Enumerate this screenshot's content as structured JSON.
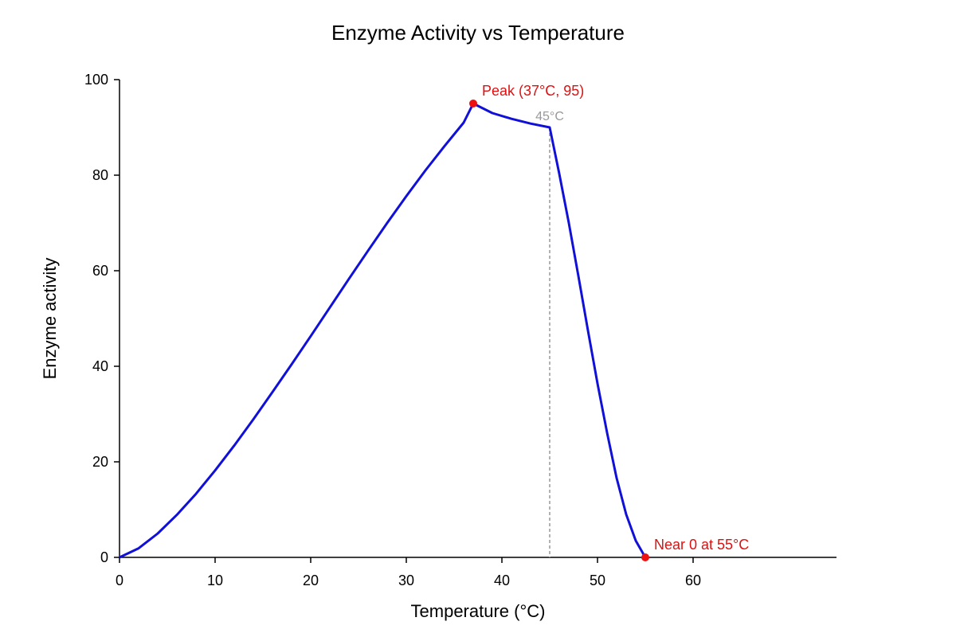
{
  "chart_data": {
    "type": "line",
    "title": "Enzyme Activity vs Temperature",
    "xlabel": "Temperature (°C)",
    "ylabel": "Enzyme activity",
    "xlim": [
      0,
      75
    ],
    "ylim": [
      0,
      100
    ],
    "xticks": [
      0,
      10,
      20,
      30,
      40,
      50,
      60
    ],
    "yticks": [
      0,
      20,
      40,
      60,
      80,
      100
    ],
    "grid": false,
    "series": [
      {
        "x": [
          0,
          2,
          4,
          6,
          8,
          10,
          12,
          14,
          16,
          18,
          20,
          22,
          24,
          26,
          28,
          30,
          32,
          34,
          36,
          37,
          39,
          41,
          43,
          45,
          46,
          47,
          48,
          49,
          50,
          51,
          52,
          53,
          54,
          55
        ],
        "y": [
          0,
          1.9,
          5.0,
          8.9,
          13.3,
          18.2,
          23.4,
          28.9,
          34.6,
          40.4,
          46.3,
          52.3,
          58.3,
          64.2,
          70.0,
          75.6,
          81.0,
          86.1,
          91.0,
          95.0,
          93.0,
          91.8,
          90.8,
          90.0,
          80.3,
          70.0,
          58.9,
          47.5,
          36.4,
          26.1,
          16.6,
          9.0,
          3.5,
          0
        ]
      }
    ],
    "reference_lines": [
      {
        "axis": "x",
        "value": 45,
        "label": "45°C"
      }
    ],
    "annotations": [
      {
        "x": 37,
        "y": 95,
        "text": "Peak (37°C, 95)"
      },
      {
        "x": 55,
        "y": 0,
        "text": "Near 0 at 55°C"
      }
    ],
    "colors": {
      "line": "#1010d8",
      "marker": "#ee1111",
      "annotation": "#dd1111",
      "reference": "#999999",
      "axis": "#000000"
    }
  }
}
